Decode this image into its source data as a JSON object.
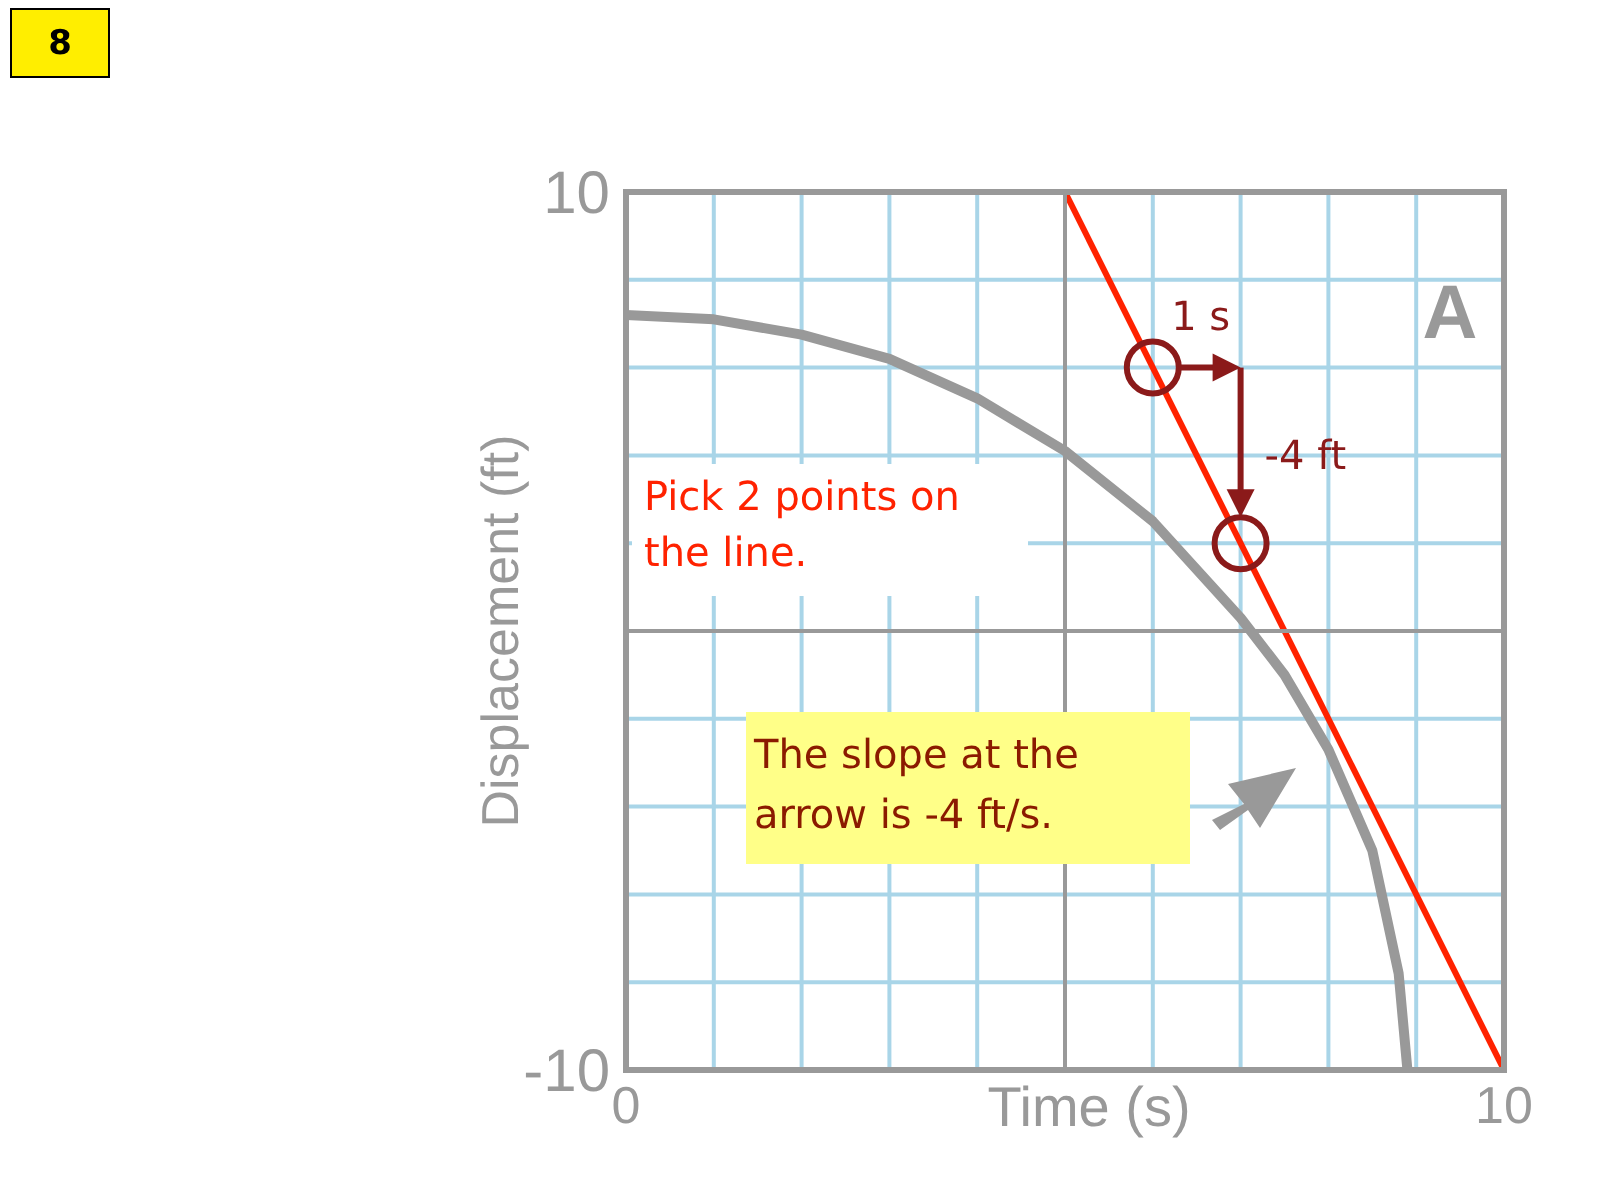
{
  "chart_data": {
    "type": "line",
    "xlabel": "Time (s)",
    "ylabel": "Displacement (ft)",
    "xlim": [
      0,
      10
    ],
    "ylim": [
      -10,
      10
    ],
    "xticks": [
      0,
      {
        "value": 1,
        "label": null
      },
      {
        "value": 2,
        "label": null
      },
      {
        "value": 3,
        "label": null
      },
      {
        "value": 4,
        "label": null
      },
      {
        "value": 5,
        "label": null
      },
      {
        "value": 6,
        "label": null
      },
      {
        "value": 7,
        "label": null
      },
      {
        "value": 8,
        "label": null
      },
      {
        "value": 9,
        "label": null
      },
      10
    ],
    "yticks": [
      -10,
      {
        "value": -8,
        "label": null
      },
      {
        "value": -6,
        "label": null
      },
      {
        "value": -4,
        "label": null
      },
      {
        "value": -2,
        "label": null
      },
      {
        "value": 0,
        "label": null
      },
      {
        "value": 2,
        "label": null
      },
      {
        "value": 4,
        "label": null
      },
      {
        "value": 6,
        "label": null
      },
      {
        "value": 8,
        "label": null
      },
      10
    ],
    "grid": true,
    "series": [
      {
        "color": "#999999",
        "x": [
          0,
          1,
          2,
          3,
          4,
          5,
          6,
          7,
          7.5,
          8,
          8.5,
          8.8,
          8.9
        ],
        "values": [
          7.2,
          7.1,
          6.75,
          6.2,
          5.3,
          4.1,
          2.5,
          0.3,
          -1.0,
          -2.7,
          -5.0,
          -7.8,
          -10
        ]
      },
      {
        "color": "#ff2200",
        "x": [
          5,
          10
        ],
        "values": [
          10,
          -10
        ]
      },
      {
        "type": "scatter",
        "color": "#8b1a1a",
        "marker": "circle",
        "x": [
          6,
          7
        ],
        "values": [
          6,
          2
        ]
      }
    ],
    "annotations": [
      "8",
      "A",
      "Pick 2 points on the line.",
      "The slope at the arrow is -4 ft/s.",
      "1 s",
      "-4 ft"
    ]
  }
}
